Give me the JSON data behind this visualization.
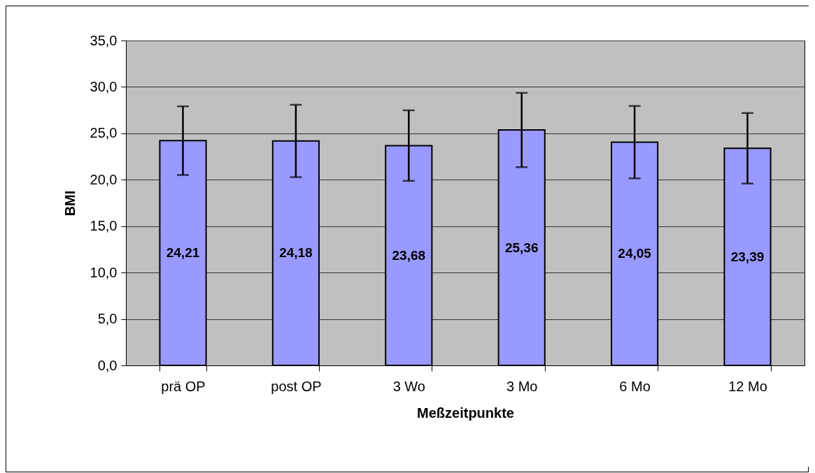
{
  "chart_data": {
    "type": "bar",
    "xlabel": "Meßzeitpunkte",
    "ylabel": "BMI",
    "categories": [
      "prä OP",
      "post OP",
      "3 Wo",
      "3 Mo",
      "6 Mo",
      "12 Mo"
    ],
    "values": [
      24.21,
      24.18,
      23.68,
      25.36,
      24.05,
      23.39
    ],
    "errors": [
      3.7,
      3.9,
      3.8,
      4.0,
      3.9,
      3.8
    ],
    "value_labels": [
      "24,21",
      "24,18",
      "23,68",
      "25,36",
      "24,05",
      "23,39"
    ],
    "color": "#9999ff",
    "ylim": [
      0,
      35
    ],
    "yticks": [
      {
        "value": 0,
        "label": "0,0"
      },
      {
        "value": 5,
        "label": "5,0"
      },
      {
        "value": 10,
        "label": "10,0"
      },
      {
        "value": 15,
        "label": "15,0"
      },
      {
        "value": 20,
        "label": "20,0"
      },
      {
        "value": 25,
        "label": "25,0"
      },
      {
        "value": 30,
        "label": "30,0"
      },
      {
        "value": 35,
        "label": "35,0"
      }
    ],
    "grid": "y"
  }
}
